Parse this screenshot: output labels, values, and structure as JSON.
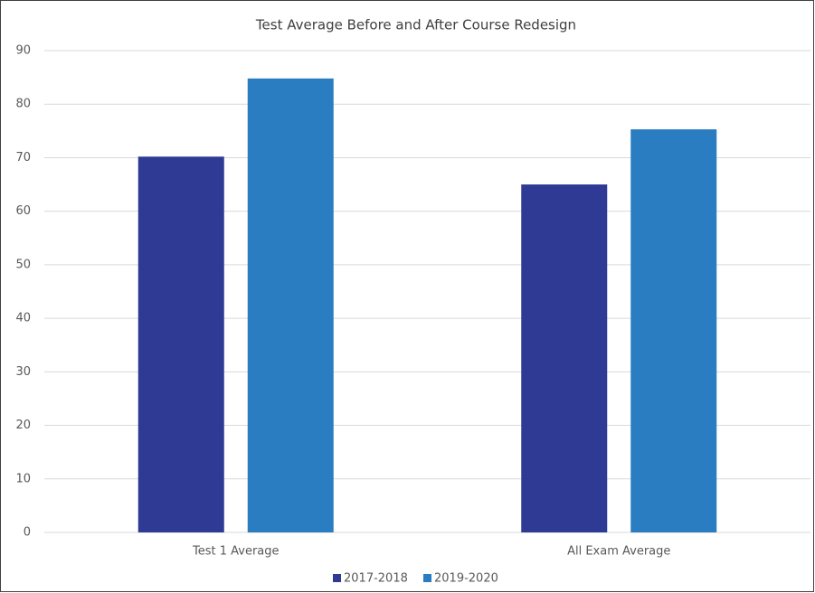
{
  "chart_data": {
    "type": "bar",
    "title": "Test Average Before and After Course Redesign",
    "categories": [
      "Test 1 Average",
      "All Exam Average"
    ],
    "series": [
      {
        "name": "2017-2018",
        "color": "#2e3a93",
        "values": [
          70.2,
          65
        ]
      },
      {
        "name": "2019-2020",
        "color": "#2a7dc1",
        "values": [
          84.8,
          75.3
        ]
      }
    ],
    "ylim": [
      0,
      90
    ],
    "yticks": [
      0,
      10,
      20,
      30,
      40,
      50,
      60,
      70,
      80,
      90
    ],
    "grid": true,
    "legend": "bottom"
  }
}
